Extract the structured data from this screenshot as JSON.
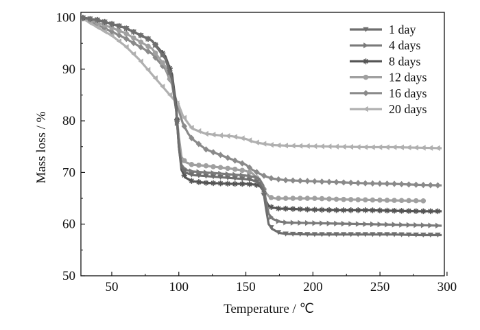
{
  "chart_data": {
    "type": "line",
    "xlabel": "Temperature / ℃",
    "ylabel": "Mass loss / %",
    "xlim": [
      27,
      298
    ],
    "ylim": [
      50,
      101
    ],
    "xticks": [
      50,
      100,
      150,
      200,
      250,
      300
    ],
    "yticks": [
      50,
      60,
      70,
      80,
      90,
      100
    ],
    "grid": false,
    "legend_position": "top-right",
    "series": [
      {
        "name": "1 day",
        "color": "#6e6e6e",
        "marker": "triangle-down",
        "x": [
          27,
          40,
          60,
          80,
          90,
          95,
          98,
          100,
          102,
          105,
          110,
          120,
          130,
          140,
          150,
          155,
          160,
          163,
          165,
          167,
          170,
          175,
          180,
          200,
          220,
          240,
          260,
          280,
          296
        ],
        "y": [
          100,
          99.5,
          98,
          95.5,
          92,
          88,
          82,
          75,
          71,
          70,
          69.5,
          69.3,
          69.1,
          68.9,
          68.7,
          68.5,
          68,
          66.5,
          63,
          60,
          59,
          58.3,
          58.1,
          58,
          58,
          58,
          58,
          57.9,
          57.9
        ]
      },
      {
        "name": "4 days",
        "color": "#7a7a7a",
        "marker": "triangle-right",
        "x": [
          27,
          40,
          60,
          80,
          90,
          95,
          98,
          100,
          102,
          105,
          110,
          120,
          130,
          140,
          150,
          155,
          160,
          163,
          165,
          167,
          170,
          175,
          180,
          200,
          220,
          240,
          260,
          280,
          296
        ],
        "y": [
          100,
          99.5,
          98,
          95.5,
          92,
          88,
          82,
          75,
          71.5,
          70.5,
          70.2,
          70,
          69.8,
          69.6,
          69.4,
          69.2,
          68.8,
          67.5,
          64.5,
          62,
          61,
          60.5,
          60.3,
          60.2,
          60.1,
          60,
          59.9,
          59.8,
          59.7
        ]
      },
      {
        "name": "8 days",
        "color": "#555555",
        "marker": "star",
        "x": [
          27,
          40,
          60,
          80,
          90,
          95,
          98,
          100,
          102,
          105,
          110,
          120,
          130,
          140,
          150,
          155,
          160,
          163,
          165,
          167,
          170,
          175,
          180,
          200,
          220,
          240,
          260,
          280,
          296
        ],
        "y": [
          100,
          99.5,
          98,
          95.5,
          92.5,
          89,
          83,
          75,
          70.5,
          69,
          68.3,
          68,
          67.9,
          67.8,
          67.8,
          67.7,
          67.5,
          66.5,
          64.5,
          63.5,
          63.2,
          63,
          63,
          62.8,
          62.7,
          62.7,
          62.6,
          62.5,
          62.5
        ]
      },
      {
        "name": "12 days",
        "color": "#a0a0a0",
        "marker": "circle",
        "x": [
          27,
          40,
          60,
          80,
          90,
          95,
          98,
          100,
          102,
          105,
          110,
          120,
          130,
          140,
          150,
          155,
          160,
          163,
          165,
          168,
          172,
          180,
          200,
          220,
          240,
          260,
          284
        ],
        "y": [
          100,
          99,
          97,
          94,
          90.5,
          87,
          82,
          77,
          73,
          72,
          71.5,
          71.3,
          71,
          70.7,
          70.3,
          69.8,
          68.5,
          67,
          66,
          65.2,
          65,
          65,
          65,
          64.8,
          64.7,
          64.6,
          64.5
        ]
      },
      {
        "name": "16 days",
        "color": "#8a8a8a",
        "marker": "diamond",
        "x": [
          27,
          40,
          60,
          80,
          90,
          95,
          98,
          100,
          103,
          107,
          110,
          115,
          120,
          130,
          140,
          150,
          155,
          160,
          165,
          170,
          180,
          200,
          220,
          240,
          260,
          280,
          296
        ],
        "y": [
          100,
          98.5,
          96,
          93,
          90,
          87,
          84,
          82,
          79.5,
          77.5,
          76.5,
          75.5,
          74.5,
          73.5,
          72.5,
          71.5,
          70.5,
          69.8,
          69.2,
          68.8,
          68.5,
          68.3,
          68.1,
          67.9,
          67.8,
          67.6,
          67.5
        ]
      },
      {
        "name": "20 days",
        "color": "#b0b0b0",
        "marker": "triangle-left",
        "x": [
          27,
          40,
          50,
          60,
          70,
          80,
          90,
          95,
          100,
          103,
          107,
          110,
          115,
          120,
          130,
          140,
          150,
          155,
          160,
          165,
          170,
          180,
          200,
          220,
          240,
          260,
          280,
          296
        ],
        "y": [
          100,
          98,
          96.5,
          94.5,
          92,
          89,
          86,
          84.5,
          83,
          81,
          79.5,
          78.5,
          78,
          77.5,
          77.2,
          77,
          76.5,
          76,
          75.7,
          75.5,
          75.3,
          75.2,
          75.1,
          75,
          74.9,
          74.9,
          74.8,
          74.7
        ]
      }
    ]
  }
}
